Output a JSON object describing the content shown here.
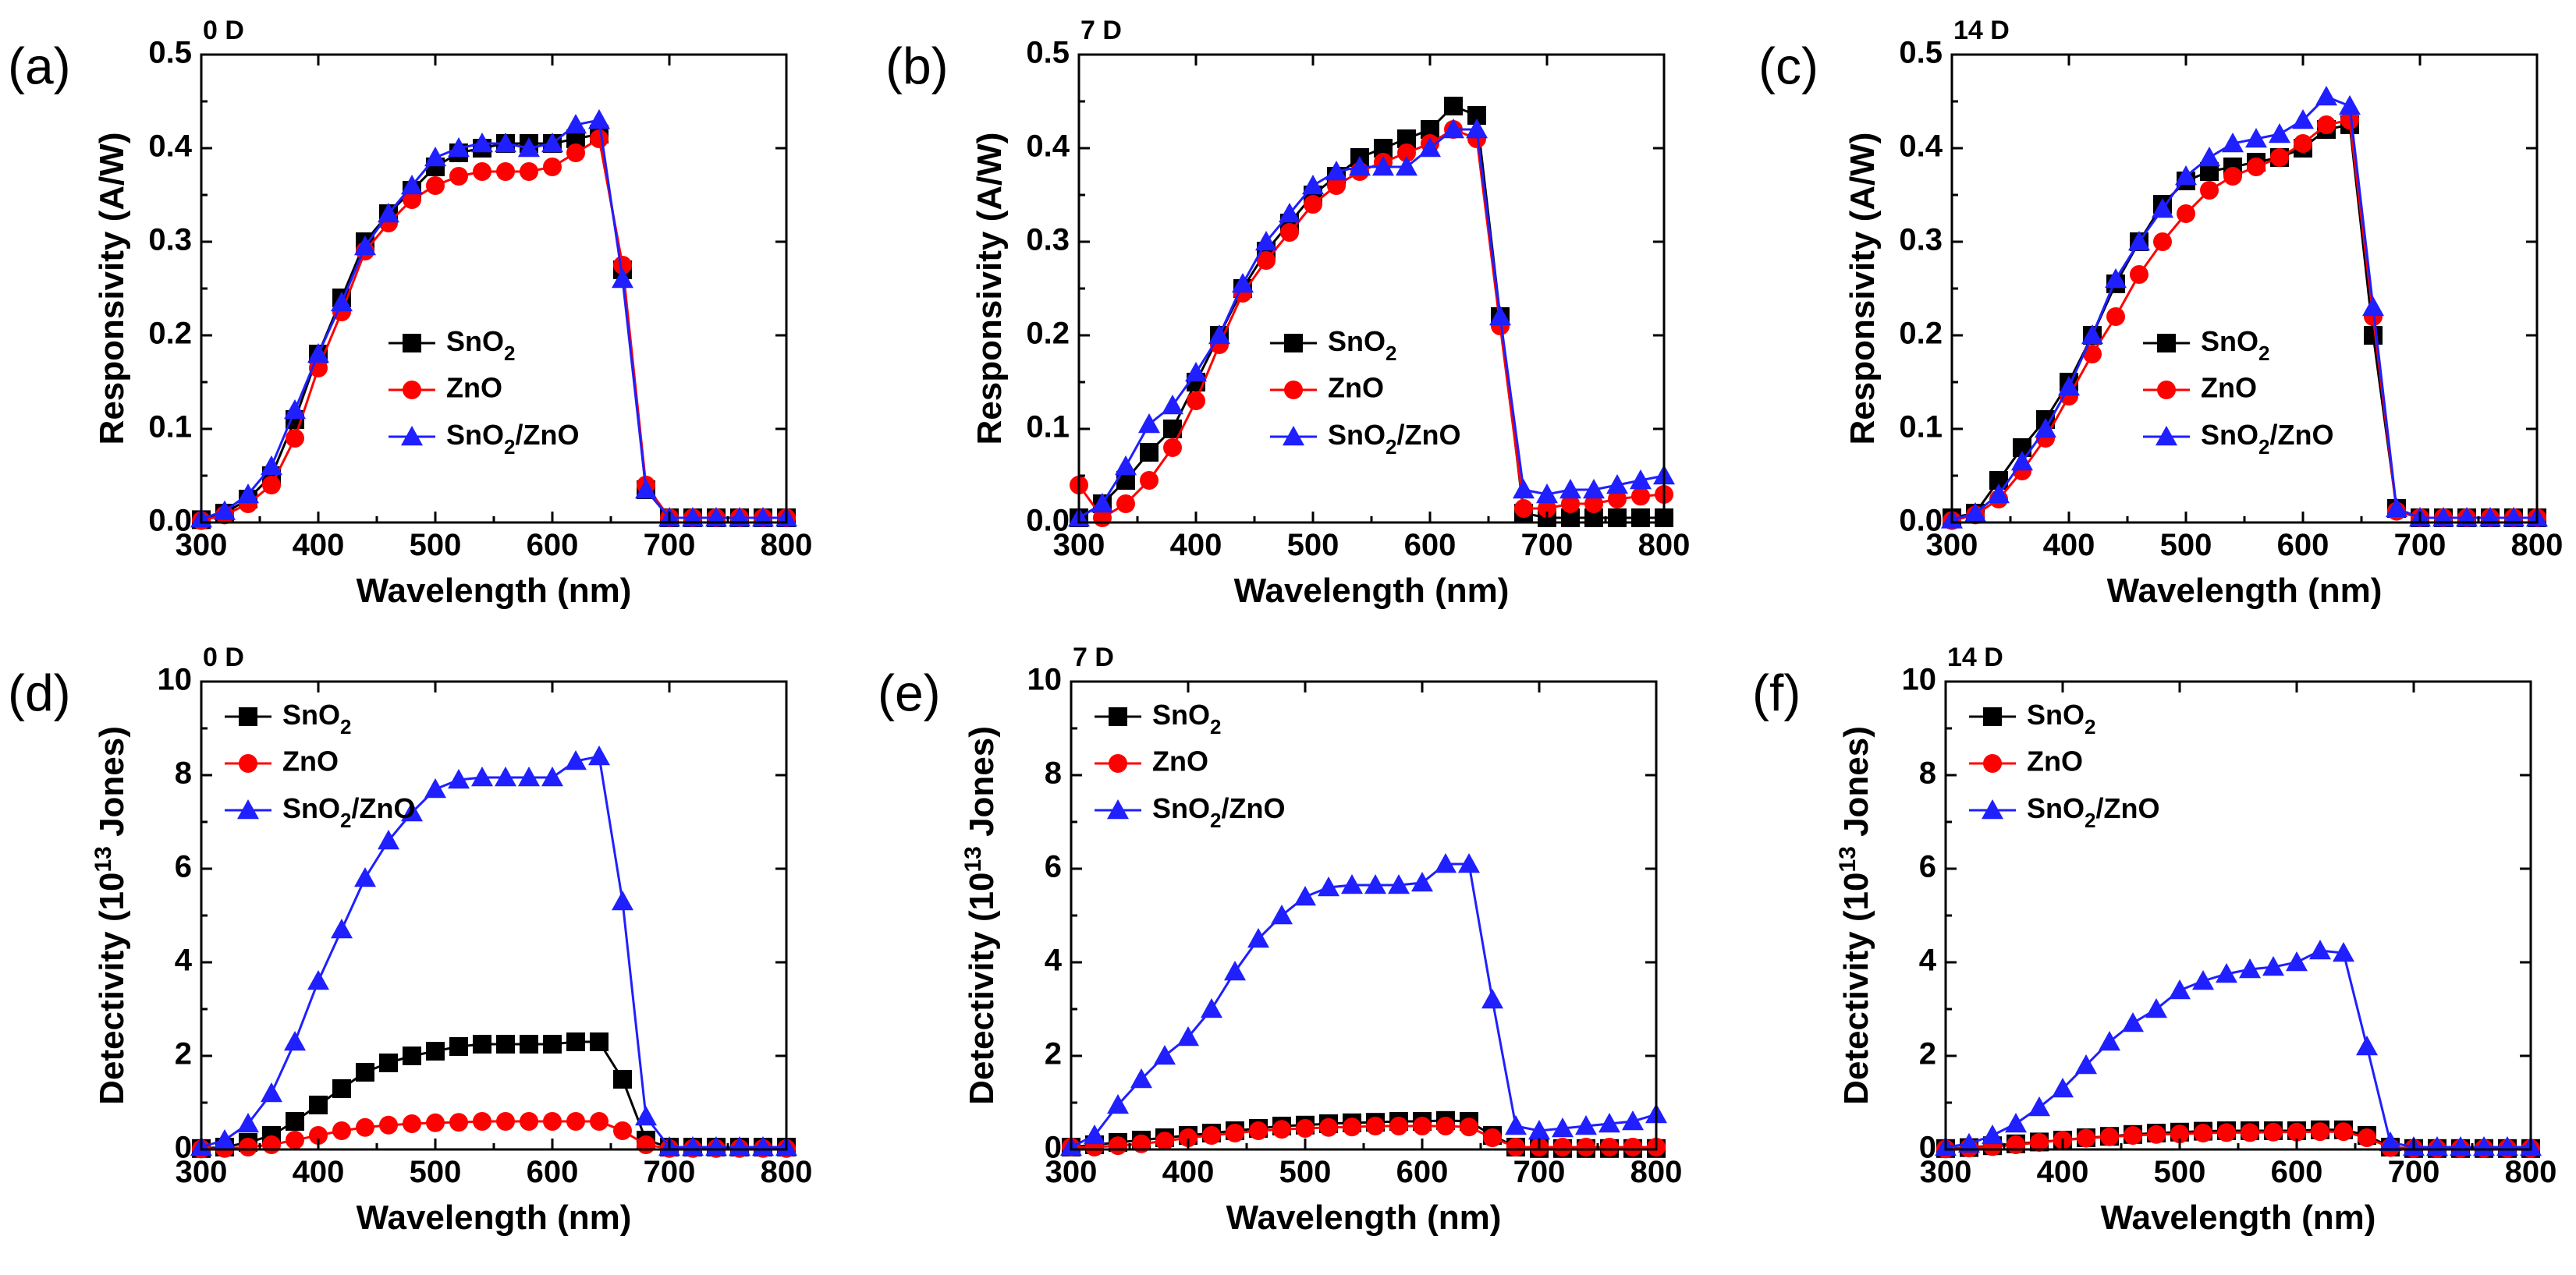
{
  "figure": {
    "type": "multi-panel line charts",
    "panels": 6
  },
  "colors": {
    "SnO2": "#000000",
    "ZnO": "#ff0000",
    "SnO2/ZnO": "#1f1fff"
  },
  "chart_data": [
    {
      "id": "a",
      "panel_label": "(a)",
      "day_label": "0 D",
      "type": "line",
      "xlabel": "Wavelength (nm)",
      "ylabel": "Responsivity (A/W)",
      "xlim": [
        300,
        800
      ],
      "ylim": [
        0,
        0.5
      ],
      "xticks": [
        "300",
        "400",
        "500",
        "600",
        "700",
        "800"
      ],
      "yticks": [
        "0.0",
        "0.1",
        "0.2",
        "0.3",
        "0.4",
        "0.5"
      ],
      "legend": {
        "position": "middle-left",
        "entries": [
          {
            "sub": true,
            "base": "SnO",
            "subscript": "2",
            "after": ""
          },
          {
            "sub": false,
            "text": "ZnO"
          },
          {
            "sub": true,
            "base": "SnO",
            "subscript": "2",
            "after": "/ZnO"
          }
        ]
      },
      "x": [
        300,
        320,
        340,
        360,
        380,
        400,
        420,
        440,
        460,
        480,
        500,
        520,
        540,
        560,
        580,
        600,
        620,
        640,
        660,
        680,
        700,
        720,
        740,
        760,
        780,
        800
      ],
      "series": [
        {
          "name": "SnO2",
          "marker": "square",
          "values": [
            0.003,
            0.01,
            0.025,
            0.05,
            0.11,
            0.18,
            0.24,
            0.3,
            0.33,
            0.355,
            0.38,
            0.395,
            0.4,
            0.405,
            0.405,
            0.405,
            0.41,
            0.415,
            0.27,
            0.035,
            0.005,
            0.005,
            0.005,
            0.005,
            0.005,
            0.005
          ]
        },
        {
          "name": "ZnO",
          "marker": "circle",
          "values": [
            0.002,
            0.008,
            0.02,
            0.04,
            0.09,
            0.165,
            0.225,
            0.29,
            0.32,
            0.345,
            0.36,
            0.37,
            0.375,
            0.375,
            0.375,
            0.38,
            0.395,
            0.41,
            0.275,
            0.04,
            0.005,
            0.005,
            0.005,
            0.005,
            0.005,
            0.005
          ]
        },
        {
          "name": "SnO2/ZnO",
          "marker": "triangle",
          "values": [
            0.004,
            0.012,
            0.03,
            0.06,
            0.12,
            0.18,
            0.235,
            0.295,
            0.33,
            0.36,
            0.39,
            0.4,
            0.405,
            0.405,
            0.4,
            0.405,
            0.425,
            0.43,
            0.26,
            0.035,
            0.005,
            0.005,
            0.005,
            0.005,
            0.005,
            0.005
          ]
        }
      ]
    },
    {
      "id": "b",
      "panel_label": "(b)",
      "day_label": "7 D",
      "type": "line",
      "xlabel": "Wavelength (nm)",
      "ylabel": "Responsivity (A/W)",
      "xlim": [
        300,
        800
      ],
      "ylim": [
        0,
        0.5
      ],
      "xticks": [
        "300",
        "400",
        "500",
        "600",
        "700",
        "800"
      ],
      "yticks": [
        "0.0",
        "0.1",
        "0.2",
        "0.3",
        "0.4",
        "0.5"
      ],
      "legend": {
        "position": "middle-center",
        "entries": [
          {
            "sub": true,
            "base": "SnO",
            "subscript": "2",
            "after": ""
          },
          {
            "sub": false,
            "text": "ZnO"
          },
          {
            "sub": true,
            "base": "SnO",
            "subscript": "2",
            "after": "/ZnO"
          }
        ]
      },
      "x": [
        300,
        320,
        340,
        360,
        380,
        400,
        420,
        440,
        460,
        480,
        500,
        520,
        540,
        560,
        580,
        600,
        620,
        640,
        660,
        680,
        700,
        720,
        740,
        760,
        780,
        800
      ],
      "series": [
        {
          "name": "SnO2",
          "marker": "square",
          "values": [
            0.005,
            0.02,
            0.045,
            0.075,
            0.1,
            0.15,
            0.2,
            0.25,
            0.29,
            0.32,
            0.35,
            0.37,
            0.39,
            0.4,
            0.41,
            0.42,
            0.445,
            0.435,
            0.22,
            0.01,
            0.005,
            0.005,
            0.005,
            0.005,
            0.005,
            0.005
          ]
        },
        {
          "name": "ZnO",
          "marker": "circle",
          "values": [
            0.04,
            0.005,
            0.02,
            0.045,
            0.08,
            0.13,
            0.19,
            0.245,
            0.28,
            0.31,
            0.34,
            0.36,
            0.375,
            0.385,
            0.395,
            0.405,
            0.42,
            0.41,
            0.21,
            0.015,
            0.015,
            0.02,
            0.02,
            0.025,
            0.028,
            0.03
          ]
        },
        {
          "name": "SnO2/ZnO",
          "marker": "triangle",
          "values": [
            0.005,
            0.02,
            0.06,
            0.105,
            0.125,
            0.16,
            0.2,
            0.255,
            0.3,
            0.33,
            0.36,
            0.375,
            0.38,
            0.38,
            0.38,
            0.4,
            0.42,
            0.42,
            0.22,
            0.035,
            0.03,
            0.035,
            0.035,
            0.04,
            0.045,
            0.05
          ]
        }
      ]
    },
    {
      "id": "c",
      "panel_label": "(c)",
      "day_label": "14 D",
      "type": "line",
      "xlabel": "Wavelength (nm)",
      "ylabel": "Responsivity (A/W)",
      "xlim": [
        300,
        800
      ],
      "ylim": [
        0,
        0.5
      ],
      "xticks": [
        "300",
        "400",
        "500",
        "600",
        "700",
        "800"
      ],
      "yticks": [
        "0.0",
        "0.1",
        "0.2",
        "0.3",
        "0.4",
        "0.5"
      ],
      "legend": {
        "position": "middle-center",
        "entries": [
          {
            "sub": true,
            "base": "SnO",
            "subscript": "2",
            "after": ""
          },
          {
            "sub": false,
            "text": "ZnO"
          },
          {
            "sub": true,
            "base": "SnO",
            "subscript": "2",
            "after": "/ZnO"
          }
        ]
      },
      "x": [
        300,
        320,
        340,
        360,
        380,
        400,
        420,
        440,
        460,
        480,
        500,
        520,
        540,
        560,
        580,
        600,
        620,
        640,
        660,
        680,
        700,
        720,
        740,
        760,
        780,
        800
      ],
      "series": [
        {
          "name": "SnO2",
          "marker": "square",
          "values": [
            0.005,
            0.01,
            0.045,
            0.08,
            0.11,
            0.15,
            0.2,
            0.255,
            0.3,
            0.34,
            0.365,
            0.375,
            0.38,
            0.385,
            0.39,
            0.4,
            0.42,
            0.425,
            0.2,
            0.015,
            0.005,
            0.005,
            0.005,
            0.005,
            0.005,
            0.005
          ]
        },
        {
          "name": "ZnO",
          "marker": "circle",
          "values": [
            0.002,
            0.008,
            0.025,
            0.055,
            0.09,
            0.135,
            0.18,
            0.22,
            0.265,
            0.3,
            0.33,
            0.355,
            0.37,
            0.38,
            0.39,
            0.405,
            0.425,
            0.43,
            0.22,
            0.012,
            0.005,
            0.005,
            0.005,
            0.005,
            0.005,
            0.005
          ]
        },
        {
          "name": "SnO2/ZnO",
          "marker": "triangle",
          "values": [
            0.003,
            0.01,
            0.03,
            0.065,
            0.1,
            0.145,
            0.2,
            0.26,
            0.3,
            0.335,
            0.37,
            0.39,
            0.405,
            0.41,
            0.415,
            0.43,
            0.455,
            0.445,
            0.23,
            0.015,
            0.005,
            0.005,
            0.005,
            0.005,
            0.005,
            0.005
          ]
        }
      ]
    },
    {
      "id": "d",
      "panel_label": "(d)",
      "day_label": "0 D",
      "type": "line",
      "xlabel": "Wavelength (nm)",
      "ylabel": {
        "pre": "Detectivity (10",
        "sup": "13",
        "post": " Jones)"
      },
      "xlim": [
        300,
        800
      ],
      "ylim": [
        0,
        10
      ],
      "xticks": [
        "300",
        "400",
        "500",
        "600",
        "700",
        "800"
      ],
      "yticks": [
        "0",
        "2",
        "4",
        "6",
        "8",
        "10"
      ],
      "legend": {
        "position": "top-left",
        "entries": [
          {
            "sub": true,
            "base": "SnO",
            "subscript": "2",
            "after": ""
          },
          {
            "sub": false,
            "text": "ZnO"
          },
          {
            "sub": true,
            "base": "SnO",
            "subscript": "2",
            "after": "/ZnO"
          }
        ]
      },
      "x": [
        300,
        320,
        340,
        360,
        380,
        400,
        420,
        440,
        460,
        480,
        500,
        520,
        540,
        560,
        580,
        600,
        620,
        640,
        660,
        680,
        700,
        720,
        740,
        760,
        780,
        800
      ],
      "series": [
        {
          "name": "SnO2",
          "marker": "square",
          "values": [
            0.02,
            0.05,
            0.15,
            0.3,
            0.6,
            0.95,
            1.3,
            1.65,
            1.85,
            2.0,
            2.1,
            2.2,
            2.25,
            2.25,
            2.25,
            2.25,
            2.3,
            2.3,
            1.5,
            0.2,
            0.05,
            0.05,
            0.05,
            0.05,
            0.05,
            0.05
          ]
        },
        {
          "name": "ZnO",
          "marker": "circle",
          "values": [
            0.01,
            0.02,
            0.05,
            0.1,
            0.2,
            0.3,
            0.4,
            0.47,
            0.52,
            0.55,
            0.57,
            0.58,
            0.6,
            0.6,
            0.6,
            0.6,
            0.6,
            0.6,
            0.4,
            0.1,
            0.02,
            0.02,
            0.02,
            0.02,
            0.02,
            0.02
          ]
        },
        {
          "name": "SnO2/ZnO",
          "marker": "triangle",
          "values": [
            0.05,
            0.2,
            0.55,
            1.2,
            2.3,
            3.6,
            4.7,
            5.8,
            6.6,
            7.2,
            7.7,
            7.9,
            7.95,
            7.95,
            7.95,
            7.95,
            8.3,
            8.4,
            5.3,
            0.7,
            0.05,
            0.05,
            0.05,
            0.05,
            0.05,
            0.05
          ]
        }
      ]
    },
    {
      "id": "e",
      "panel_label": "(e)",
      "day_label": "7 D",
      "type": "line",
      "xlabel": "Wavelength (nm)",
      "ylabel": {
        "pre": "Detectivity (10",
        "sup": "13",
        "post": " Jones)"
      },
      "xlim": [
        300,
        800
      ],
      "ylim": [
        0,
        10
      ],
      "xticks": [
        "300",
        "400",
        "500",
        "600",
        "700",
        "800"
      ],
      "yticks": [
        "0",
        "2",
        "4",
        "6",
        "8",
        "10"
      ],
      "legend": {
        "position": "top-left",
        "entries": [
          {
            "sub": true,
            "base": "SnO",
            "subscript": "2",
            "after": ""
          },
          {
            "sub": false,
            "text": "ZnO"
          },
          {
            "sub": true,
            "base": "SnO",
            "subscript": "2",
            "after": "/ZnO"
          }
        ]
      },
      "x": [
        300,
        320,
        340,
        360,
        380,
        400,
        420,
        440,
        460,
        480,
        500,
        520,
        540,
        560,
        580,
        600,
        620,
        640,
        660,
        680,
        700,
        720,
        740,
        760,
        780,
        800
      ],
      "series": [
        {
          "name": "SnO2",
          "marker": "square",
          "values": [
            0.05,
            0.1,
            0.15,
            0.2,
            0.25,
            0.3,
            0.35,
            0.4,
            0.45,
            0.5,
            0.52,
            0.55,
            0.57,
            0.58,
            0.6,
            0.6,
            0.62,
            0.6,
            0.3,
            0.05,
            0.02,
            0.02,
            0.02,
            0.02,
            0.02,
            0.02
          ]
        },
        {
          "name": "ZnO",
          "marker": "circle",
          "values": [
            0.05,
            0.05,
            0.08,
            0.12,
            0.18,
            0.25,
            0.3,
            0.35,
            0.4,
            0.43,
            0.45,
            0.47,
            0.48,
            0.5,
            0.5,
            0.5,
            0.5,
            0.48,
            0.25,
            0.05,
            0.05,
            0.05,
            0.05,
            0.05,
            0.05,
            0.05
          ]
        },
        {
          "name": "SnO2/ZnO",
          "marker": "triangle",
          "values": [
            0.05,
            0.3,
            0.95,
            1.5,
            2.0,
            2.4,
            3.0,
            3.8,
            4.5,
            5.0,
            5.4,
            5.6,
            5.65,
            5.65,
            5.65,
            5.7,
            6.1,
            6.1,
            3.2,
            0.5,
            0.4,
            0.45,
            0.5,
            0.55,
            0.6,
            0.75
          ]
        }
      ]
    },
    {
      "id": "f",
      "panel_label": "(f)",
      "day_label": "14 D",
      "type": "line",
      "xlabel": "Wavelength (nm)",
      "ylabel": {
        "pre": "Detectivity (10",
        "sup": "13",
        "post": " Jones)"
      },
      "xlim": [
        300,
        800
      ],
      "ylim": [
        0,
        10
      ],
      "xticks": [
        "300",
        "400",
        "500",
        "600",
        "700",
        "800"
      ],
      "yticks": [
        "0",
        "2",
        "4",
        "6",
        "8",
        "10"
      ],
      "legend": {
        "position": "top-left",
        "entries": [
          {
            "sub": true,
            "base": "SnO",
            "subscript": "2",
            "after": ""
          },
          {
            "sub": false,
            "text": "ZnO"
          },
          {
            "sub": true,
            "base": "SnO",
            "subscript": "2",
            "after": "/ZnO"
          }
        ]
      },
      "x": [
        300,
        320,
        340,
        360,
        380,
        400,
        420,
        440,
        460,
        480,
        500,
        520,
        540,
        560,
        580,
        600,
        620,
        640,
        660,
        680,
        700,
        720,
        740,
        760,
        780,
        800
      ],
      "series": [
        {
          "name": "SnO2",
          "marker": "square",
          "values": [
            0.02,
            0.04,
            0.08,
            0.12,
            0.16,
            0.2,
            0.25,
            0.28,
            0.32,
            0.35,
            0.37,
            0.39,
            0.4,
            0.4,
            0.4,
            0.4,
            0.42,
            0.42,
            0.3,
            0.05,
            0.02,
            0.02,
            0.02,
            0.02,
            0.02,
            0.02
          ]
        },
        {
          "name": "ZnO",
          "marker": "circle",
          "values": [
            0.01,
            0.03,
            0.06,
            0.1,
            0.15,
            0.2,
            0.24,
            0.27,
            0.3,
            0.32,
            0.33,
            0.35,
            0.36,
            0.36,
            0.37,
            0.37,
            0.38,
            0.38,
            0.25,
            0.04,
            0.02,
            0.02,
            0.02,
            0.02,
            0.02,
            0.02
          ]
        },
        {
          "name": "SnO2/ZnO",
          "marker": "triangle",
          "values": [
            0.05,
            0.12,
            0.3,
            0.55,
            0.9,
            1.3,
            1.8,
            2.3,
            2.7,
            3.0,
            3.4,
            3.6,
            3.75,
            3.85,
            3.9,
            4.0,
            4.25,
            4.2,
            2.2,
            0.15,
            0.05,
            0.05,
            0.05,
            0.05,
            0.05,
            0.05
          ]
        }
      ]
    }
  ]
}
